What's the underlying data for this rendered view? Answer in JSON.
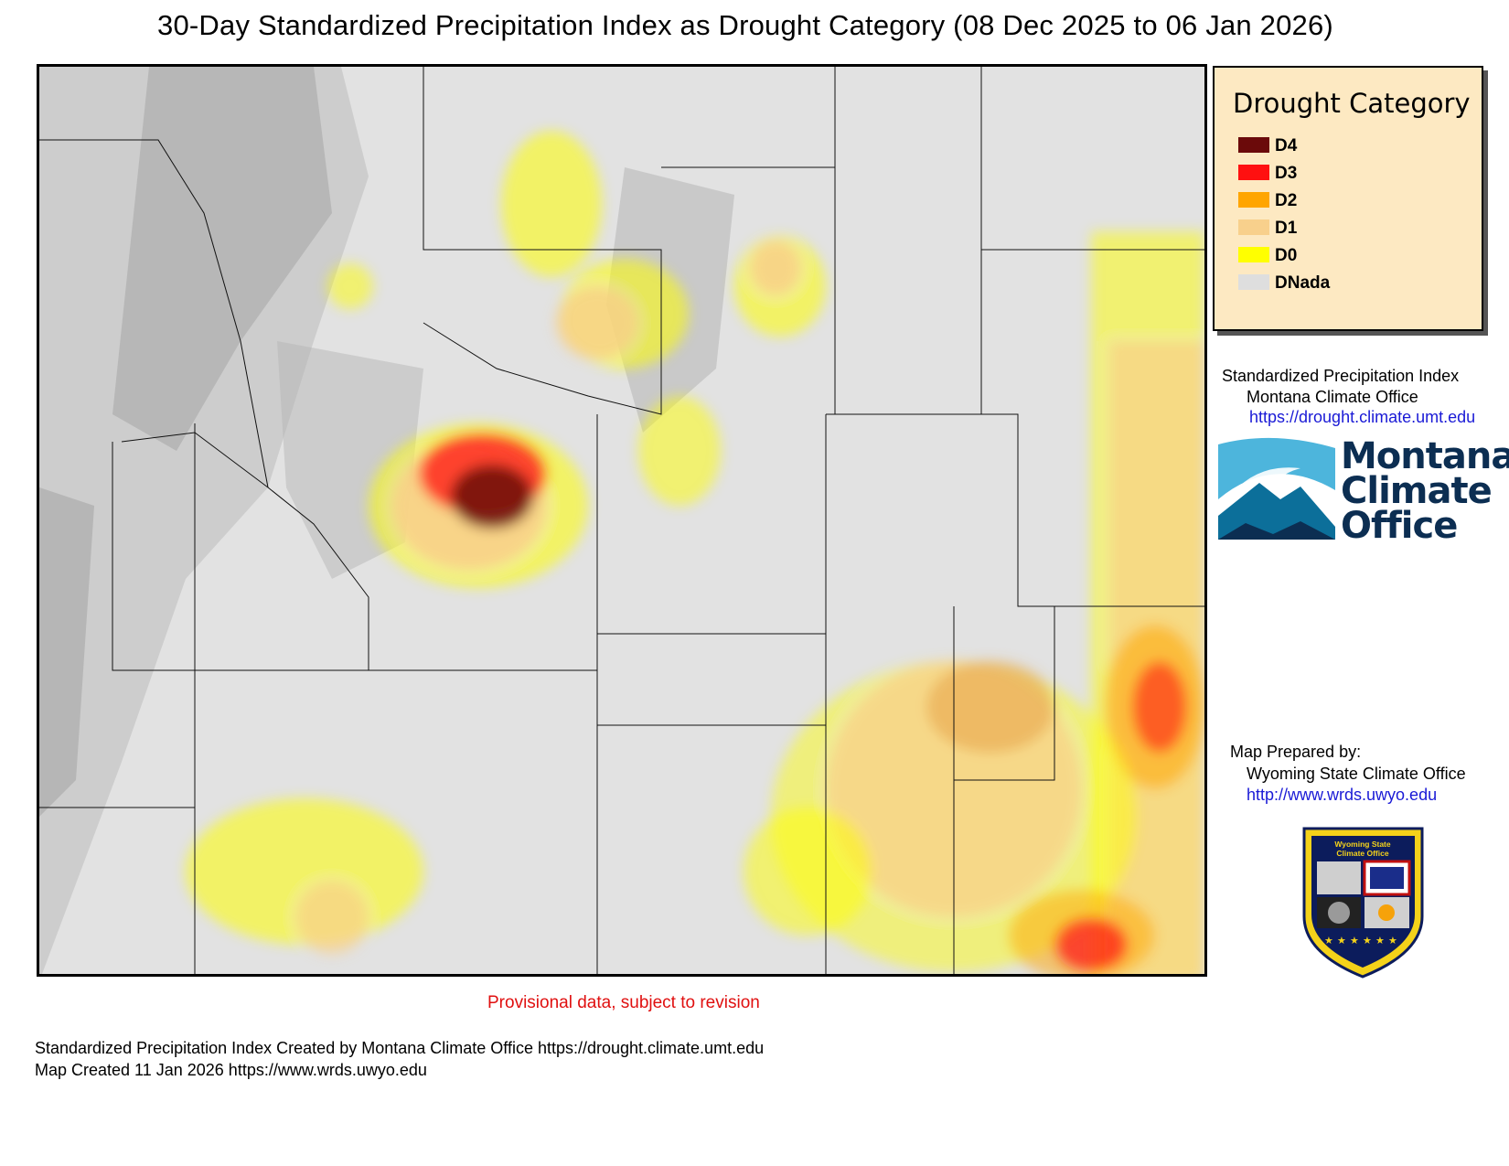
{
  "title": "30-Day Standardized Precipitation Index as Drought Category (08 Dec 2025 to 06 Jan 2026)",
  "legend": {
    "title": "Drought Category",
    "items": [
      {
        "label": "D4",
        "color": "#6b0a0a"
      },
      {
        "label": "D3",
        "color": "#ff1010"
      },
      {
        "label": "D2",
        "color": "#ffa500"
      },
      {
        "label": "D1",
        "color": "#f8d08c"
      },
      {
        "label": "D0",
        "color": "#ffff00"
      },
      {
        "label": "DNada",
        "color": "#dedede"
      }
    ]
  },
  "spi_credit": {
    "line1": "Standardized Precipitation Index",
    "line2": "Montana Climate Office",
    "url": "https://drought.climate.umt.edu"
  },
  "mco_logo": {
    "word1": "Montana",
    "word2": "Climate",
    "word3": "Office"
  },
  "prepared_by": {
    "line1": "Map Prepared by:",
    "line2": "Wyoming State Climate Office",
    "url": "http://www.wrds.uwyo.edu"
  },
  "wsco_badge": {
    "text1": "Wyoming State",
    "text2": "Climate Office"
  },
  "provisional_note": "Provisional data, subject to revision",
  "footer": {
    "line1": "Standardized Precipitation Index Created by Montana Climate Office https://drought.climate.umt.edu",
    "line2": "Map Created 11 Jan 2026 https://www.wrds.uwyo.edu"
  },
  "colors": {
    "map_background": "#e2e2e2",
    "legend_background": "#fde9c2",
    "link": "#1a1ad6",
    "provisional": "#e01010"
  }
}
